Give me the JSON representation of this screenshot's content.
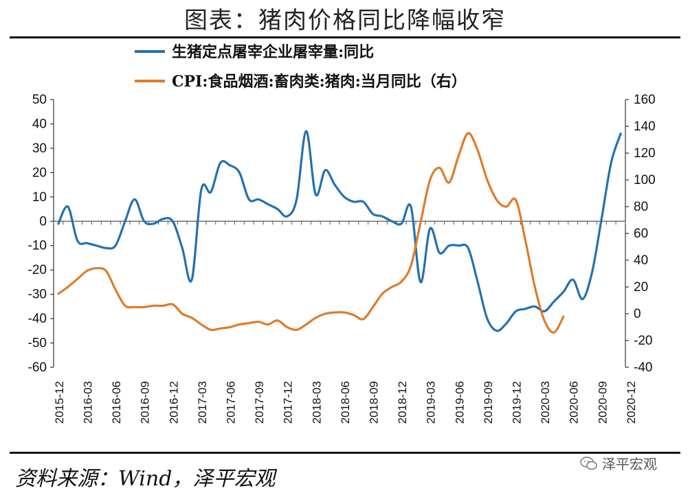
{
  "page": {
    "title": "图表：猪肉价格同比降幅收窄",
    "source": "资料来源：Wind，泽平宏观",
    "watermark": "泽平宏观"
  },
  "chart_data": {
    "type": "line",
    "title": "图表：猪肉价格同比降幅收窄",
    "x_tick_labels": [
      "2015-12",
      "2016-03",
      "2016-06",
      "2016-09",
      "2016-12",
      "2017-03",
      "2017-06",
      "2017-09",
      "2017-12",
      "2018-03",
      "2018-06",
      "2018-09",
      "2018-12",
      "2019-03",
      "2019-06",
      "2019-09",
      "2019-12",
      "2020-03",
      "2020-06",
      "2020-09",
      "2020-12"
    ],
    "left_axis": {
      "ylim": [
        -60,
        50
      ],
      "ticks": [
        -60,
        -50,
        -40,
        -30,
        -20,
        -10,
        0,
        10,
        20,
        30,
        40,
        50
      ]
    },
    "right_axis": {
      "ylim": [
        -40,
        160
      ],
      "ticks": [
        -40,
        -20,
        0,
        20,
        40,
        60,
        80,
        100,
        120,
        140,
        160
      ]
    },
    "legend_position": "top",
    "series": [
      {
        "name": "生猪定点屠宰企业屠宰量:同比",
        "axis": "left",
        "color": "#2271B3",
        "start_month_index": 0,
        "values": [
          -1,
          6,
          -8,
          -9,
          -10,
          -11,
          -10,
          0,
          9,
          0,
          -1,
          1,
          0,
          -11,
          -24,
          13,
          12,
          24,
          23,
          20,
          9,
          9,
          7,
          5,
          2,
          9,
          37,
          11,
          21,
          15,
          10,
          8,
          8,
          3,
          2,
          0,
          -1,
          6,
          -25,
          -3,
          -13,
          -10,
          -10,
          -11,
          -25,
          -40,
          -45,
          -42,
          -37,
          -36,
          -35,
          -37,
          -33,
          -29,
          -24,
          -32,
          -21,
          1,
          24,
          36
        ]
      },
      {
        "name": "CPI:食品烟酒:畜肉类:猪肉:当月同比（右）",
        "axis": "right",
        "color": "#E07B28",
        "start_month_index": 0,
        "values": [
          15,
          20,
          26,
          32,
          34,
          32,
          18,
          6,
          5,
          5,
          6,
          6,
          7,
          0,
          -3,
          -8,
          -12,
          -11,
          -10,
          -8,
          -7,
          -6,
          -8,
          -5,
          -10,
          -12,
          -8,
          -3,
          0,
          1,
          1,
          -1,
          -4,
          5,
          15,
          20,
          24,
          36,
          68,
          100,
          109,
          98,
          118,
          135,
          122,
          100,
          85,
          80,
          85,
          55,
          20,
          -5,
          -14,
          -2
        ]
      }
    ]
  }
}
